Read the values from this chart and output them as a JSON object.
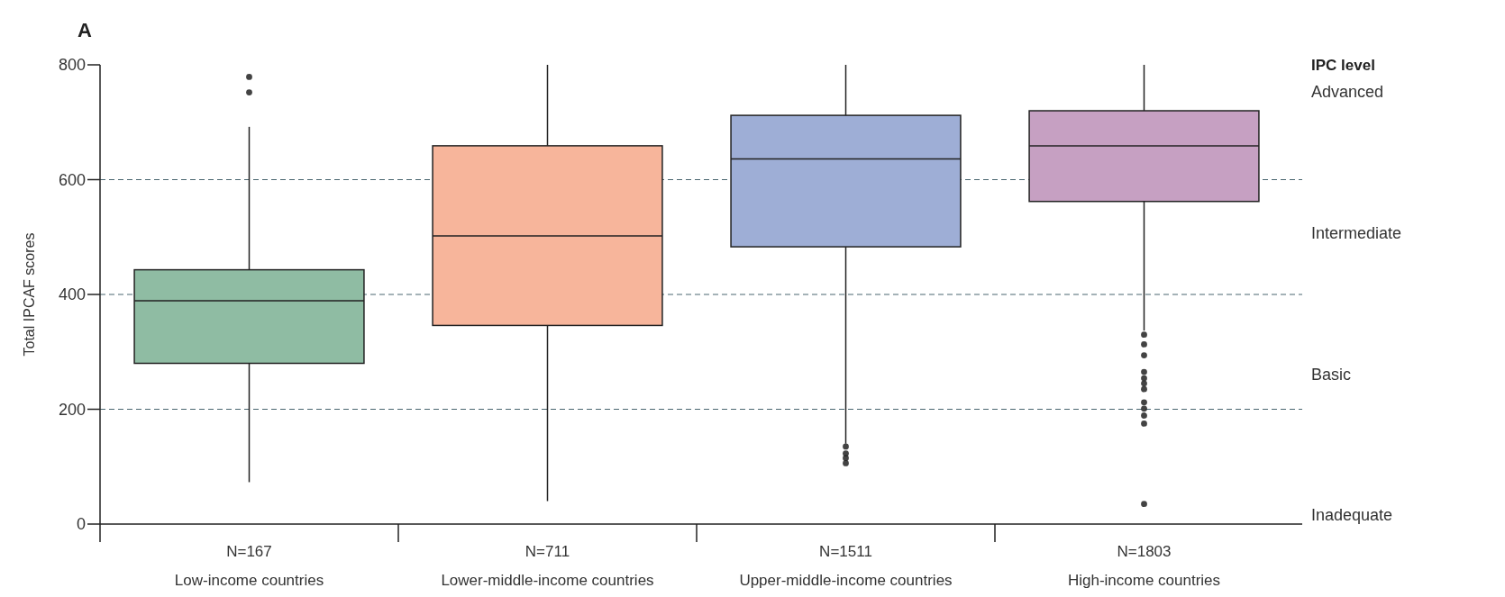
{
  "chart_data": {
    "type": "box",
    "title": "A",
    "ylabel": "Total IPCAF scores",
    "categories": [
      "N=167\nLow-income countries",
      "N=711\nLower-middle-income countries",
      "N=1511\nUpper-middle-income countries",
      "N=1803\nHigh-income countries"
    ],
    "colors": [
      "#8fbca3",
      "#f7b59b",
      "#9eaed6",
      "#c6a0c2"
    ],
    "boxes": [
      {
        "low": 73,
        "q1": 280,
        "median": 389,
        "q3": 443,
        "high": 692,
        "outliers": [
          779,
          752
        ]
      },
      {
        "low": 40,
        "q1": 346,
        "median": 502,
        "q3": 659,
        "high": 800
      },
      {
        "low": 140,
        "q1": 483,
        "median": 636,
        "q3": 712,
        "high": 800,
        "outliers": [
          135,
          123,
          115,
          106
        ]
      },
      {
        "low": 337,
        "q1": 562,
        "median": 659,
        "q3": 720,
        "high": 800,
        "outliers": [
          330,
          313,
          294,
          265,
          254,
          245,
          235,
          212,
          201,
          189,
          175,
          35
        ]
      }
    ],
    "ylim": [
      0,
      800
    ],
    "yticks": [
      0,
      200,
      400,
      600,
      800
    ],
    "grid": false,
    "ref_lines": [
      {
        "axis": "y",
        "value": 200,
        "color": "#4a6670",
        "line_style": "dashed"
      },
      {
        "axis": "y",
        "value": 400,
        "color": "#4a6670",
        "line_style": "dashed"
      },
      {
        "axis": "y",
        "value": 600,
        "color": "#4a6670",
        "line_style": "dashed"
      }
    ],
    "legend_title": "IPC level",
    "annotations": [
      "Advanced",
      "Intermediate",
      "Basic",
      "Inadequate"
    ]
  }
}
